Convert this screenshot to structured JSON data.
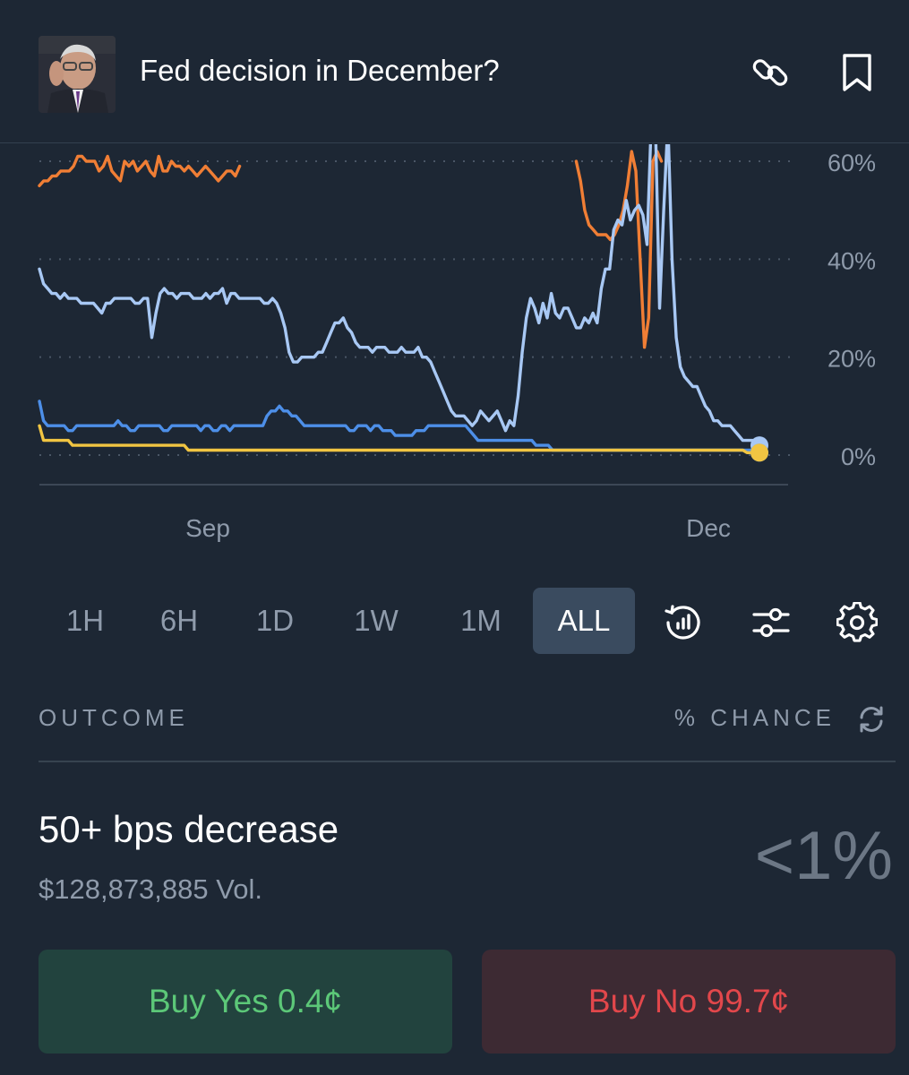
{
  "header": {
    "title": "Fed decision in December?",
    "avatar": "market-avatar-photo",
    "icons": [
      "link-icon",
      "bookmark-icon"
    ]
  },
  "chart_data": {
    "type": "line",
    "title": "",
    "xlabel": "",
    "ylabel": "",
    "x_ticks": [
      "Sep",
      "Dec"
    ],
    "y_ticks": [
      "60%",
      "40%",
      "20%",
      "0%"
    ],
    "ylim": [
      0,
      60
    ],
    "grid": true,
    "y_axis_position": "right",
    "series": [
      {
        "color": "#f07e35",
        "values": [
          55,
          56,
          56,
          57,
          57,
          58,
          58,
          58,
          59,
          61,
          61,
          60,
          60,
          60,
          58,
          59,
          61,
          58,
          57,
          56,
          60,
          59,
          60,
          58,
          59,
          60,
          58,
          57,
          61,
          58,
          58,
          60,
          59,
          59,
          58,
          59,
          58,
          57,
          58,
          59,
          58,
          57,
          56,
          57,
          58,
          58,
          57,
          59,
          null,
          null,
          null,
          null,
          null,
          null,
          null,
          null,
          null,
          null,
          null,
          null,
          null,
          null,
          null,
          null,
          null,
          null,
          null,
          null,
          null,
          null,
          null,
          null,
          null,
          null,
          null,
          null,
          null,
          null,
          null,
          null,
          null,
          null,
          null,
          null,
          null,
          null,
          null,
          null,
          null,
          null,
          null,
          null,
          null,
          null,
          null,
          null,
          null,
          null,
          null,
          null,
          null,
          null,
          null,
          null,
          null,
          null,
          null,
          null,
          null,
          null,
          null,
          null,
          null,
          null,
          null,
          null,
          null,
          null,
          null,
          null,
          null,
          null,
          null,
          null,
          null,
          null,
          60,
          56,
          50,
          47,
          46,
          45,
          45,
          45,
          44,
          45,
          47,
          50,
          55,
          62,
          58,
          40,
          22,
          28,
          60,
          62,
          60,
          null,
          null,
          null,
          null,
          null,
          null,
          null,
          null,
          null,
          null,
          null,
          null,
          null,
          null,
          null,
          null,
          null,
          null,
          null,
          null,
          null,
          null,
          null
        ]
      },
      {
        "color": "#a8c8f4",
        "values": [
          38,
          35,
          34,
          33,
          33,
          32,
          33,
          32,
          32,
          32,
          31,
          31,
          31,
          31,
          30,
          29,
          31,
          31,
          32,
          32,
          32,
          32,
          32,
          31,
          31,
          32,
          32,
          24,
          29,
          33,
          34,
          33,
          33,
          32,
          33,
          33,
          33,
          32,
          32,
          32,
          33,
          32,
          33,
          33,
          34,
          31,
          33,
          33,
          32,
          32,
          32,
          32,
          32,
          32,
          31,
          31,
          32,
          31,
          29,
          26,
          21,
          19,
          19,
          20,
          20,
          20,
          20,
          21,
          21,
          23,
          25,
          27,
          27,
          28,
          26,
          25,
          23,
          22,
          22,
          22,
          21,
          22,
          22,
          22,
          21,
          21,
          21,
          22,
          21,
          21,
          21,
          22,
          20,
          20,
          19,
          17,
          15,
          13,
          11,
          9,
          8,
          8,
          8,
          7,
          6,
          7,
          9,
          8,
          7,
          8,
          9,
          7,
          5,
          7,
          6,
          12,
          21,
          28,
          32,
          30,
          27,
          31,
          28,
          33,
          29,
          28,
          30,
          30,
          28,
          26,
          26,
          28,
          27,
          29,
          27,
          34,
          38,
          38,
          46,
          48,
          47,
          52,
          48,
          50,
          51,
          49,
          43,
          68,
          68,
          30,
          50,
          68,
          40,
          24,
          18,
          16,
          15,
          14,
          14,
          12,
          10,
          9,
          7,
          7,
          6,
          6,
          6,
          5,
          4,
          3,
          3,
          3,
          3,
          2
        ]
      },
      {
        "color": "#4d8fe8",
        "values": [
          11,
          7,
          6,
          6,
          6,
          6,
          6,
          5,
          5,
          6,
          6,
          6,
          6,
          6,
          6,
          6,
          6,
          6,
          6,
          7,
          6,
          6,
          5,
          5,
          6,
          6,
          6,
          6,
          6,
          6,
          5,
          5,
          6,
          6,
          6,
          6,
          6,
          6,
          6,
          5,
          6,
          6,
          5,
          5,
          6,
          6,
          5,
          6,
          6,
          6,
          6,
          6,
          6,
          6,
          6,
          8,
          9,
          9,
          10,
          9,
          9,
          8,
          8,
          7,
          6,
          6,
          6,
          6,
          6,
          6,
          6,
          6,
          6,
          6,
          6,
          5,
          5,
          6,
          6,
          6,
          5,
          6,
          6,
          5,
          5,
          5,
          4,
          4,
          4,
          4,
          4,
          5,
          5,
          5,
          6,
          6,
          6,
          6,
          6,
          6,
          6,
          6,
          6,
          6,
          5,
          4,
          3,
          3,
          3,
          3,
          3,
          3,
          3,
          3,
          3,
          3,
          3,
          3,
          3,
          3,
          2,
          2,
          2,
          2,
          1,
          1,
          1,
          1,
          1,
          1,
          1,
          1,
          1,
          1,
          1,
          1,
          1,
          1,
          1,
          1,
          1,
          1,
          1,
          1,
          1,
          1,
          1,
          1,
          1,
          1,
          1,
          1,
          1,
          1,
          1,
          1,
          1,
          1,
          1,
          1,
          1,
          1,
          1,
          1,
          1,
          1,
          1,
          1,
          1,
          1,
          1,
          1,
          1,
          1,
          0.5
        ]
      },
      {
        "color": "#f1c542",
        "values": [
          6,
          3,
          3,
          3,
          3,
          3,
          3,
          3,
          2,
          2,
          2,
          2,
          2,
          2,
          2,
          2,
          2,
          2,
          2,
          2,
          2,
          2,
          2,
          2,
          2,
          2,
          2,
          2,
          2,
          2,
          2,
          2,
          2,
          2,
          2,
          2,
          1,
          1,
          1,
          1,
          1,
          1,
          1,
          1,
          1,
          1,
          1,
          1,
          1,
          1,
          1,
          1,
          1,
          1,
          1,
          1,
          1,
          1,
          1,
          1,
          1,
          1,
          1,
          1,
          1,
          1,
          1,
          1,
          1,
          1,
          1,
          1,
          1,
          1,
          1,
          1,
          1,
          1,
          1,
          1,
          1,
          1,
          1,
          1,
          1,
          1,
          1,
          1,
          1,
          1,
          1,
          1,
          1,
          1,
          1,
          1,
          1,
          1,
          1,
          1,
          1,
          1,
          1,
          1,
          1,
          1,
          1,
          1,
          1,
          1,
          1,
          1,
          1,
          1,
          1,
          1,
          1,
          1,
          1,
          1,
          1,
          1,
          1,
          1,
          1,
          1,
          1,
          1,
          1,
          1,
          1,
          1,
          1,
          1,
          1,
          1,
          1,
          1,
          1,
          1,
          1,
          1,
          1,
          1,
          1,
          1,
          1,
          1,
          1,
          1,
          1,
          1,
          1,
          1,
          1,
          1,
          1,
          1,
          1,
          1,
          1,
          1,
          1,
          1,
          1,
          1,
          1,
          1,
          1,
          1,
          1,
          0.5,
          0.5,
          0.5,
          0.5
        ]
      }
    ]
  },
  "range": {
    "buttons": [
      "1H",
      "6H",
      "1D",
      "1W",
      "1M",
      "ALL"
    ],
    "active": "ALL",
    "icons": [
      "history-chart-icon",
      "sliders-icon",
      "gear-icon"
    ]
  },
  "outcome_header": {
    "left": "OUTCOME",
    "right": "% CHANCE"
  },
  "outcome": {
    "name": "50+ bps decrease",
    "volume": "$128,873,885 Vol.",
    "chance": "<1%"
  },
  "buttons": {
    "yes": "Buy Yes 0.4¢",
    "no": "Buy No 99.7¢"
  }
}
